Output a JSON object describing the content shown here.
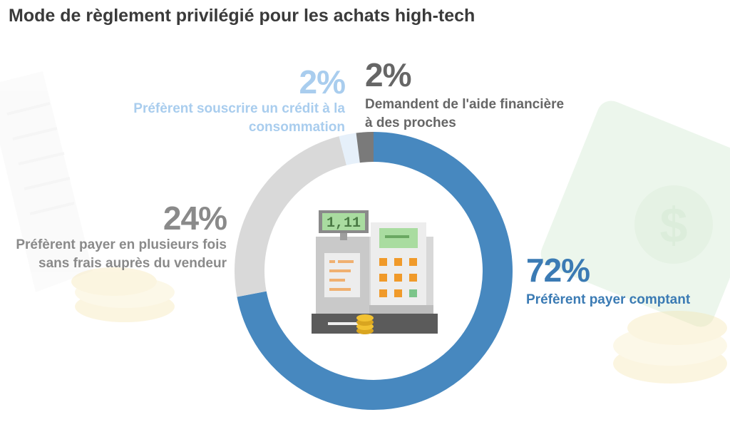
{
  "title": "Mode de règlement privilégié pour les achats high-tech",
  "register_display": "1,11",
  "chart_data": {
    "type": "pie",
    "subtype": "donut",
    "start": "top",
    "direction": "clockwise",
    "slices": [
      {
        "value": 72,
        "pct_label": "72%",
        "desc": "Préfèrent payer comptant",
        "color": "#4788bf",
        "text_color": "#3b7bb4"
      },
      {
        "value": 24,
        "pct_label": "24%",
        "desc": "Préfèrent payer en plusieurs fois sans frais auprès du vendeur",
        "color": "#d9d9d9",
        "text_color": "#8a8a8a"
      },
      {
        "value": 2,
        "pct_label": "2%",
        "desc": "Préfèrent souscrire un crédit à la consommation",
        "color": "#e6f0fa",
        "text_color": "#a9cdee"
      },
      {
        "value": 2,
        "pct_label": "2%",
        "desc": "Demandent de l'aide financière à des proches",
        "color": "#7a7a7a",
        "text_color": "#666666"
      }
    ]
  }
}
